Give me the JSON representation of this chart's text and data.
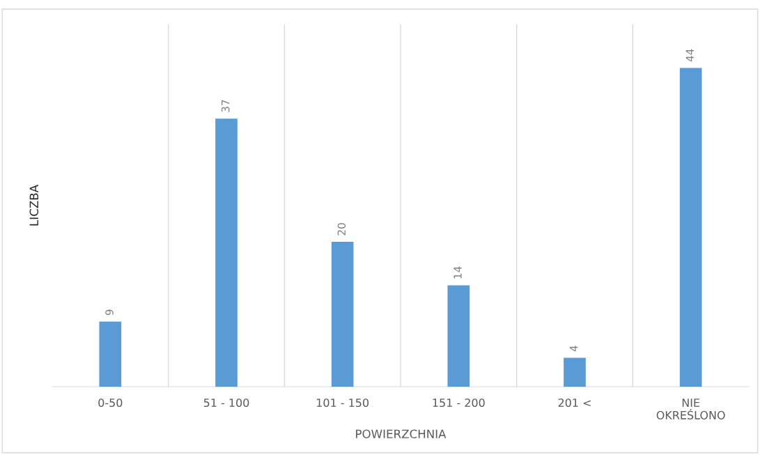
{
  "chart_data": {
    "type": "bar",
    "xlabel": "POWIERZCHNIA",
    "ylabel": "LICZBA",
    "categories": [
      "0-50",
      "51 - 100",
      "101 - 150",
      "151 - 200",
      "201 <",
      "NIE\nOKREŚLONO"
    ],
    "values": [
      9,
      37,
      20,
      14,
      4,
      44
    ],
    "color": "#5b9bd5",
    "ylim": [
      0,
      50
    ],
    "tick_labels": "x",
    "data_labels": true,
    "grid": "x",
    "legend": false
  }
}
